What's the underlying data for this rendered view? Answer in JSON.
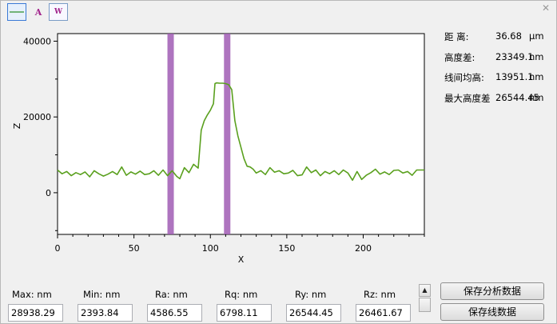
{
  "toolbar": {
    "line_icon": "line-icon",
    "a_label": "A",
    "w_label": "W"
  },
  "stats": [
    {
      "label": "距 离:",
      "value": "36.68",
      "unit": "μm"
    },
    {
      "label": "高度差:",
      "value": "23349.1",
      "unit": "nm"
    },
    {
      "label": "线间均高:",
      "value": "13951.1",
      "unit": "nm"
    },
    {
      "label": "最大高度差",
      "value": "26544.45",
      "unit": "nm"
    }
  ],
  "measurements": [
    {
      "label": "Max:   nm",
      "value": "28938.29"
    },
    {
      "label": "Min:   nm",
      "value": "2393.84"
    },
    {
      "label": "Ra:    nm",
      "value": "4586.55"
    },
    {
      "label": "Rq:    nm",
      "value": "6798.11"
    },
    {
      "label": "Ry:    nm",
      "value": "26544.45"
    },
    {
      "label": "Rz:    nm",
      "value": "26461.67"
    }
  ],
  "buttons": {
    "save_analysis": "保存分析数据",
    "save_line": "保存线数据"
  },
  "colors": {
    "profile_line": "#5aa01e",
    "marker": "#a05cb4"
  },
  "chart_data": {
    "type": "line",
    "xlabel": "X",
    "ylabel": "Z",
    "xlim": [
      0,
      240
    ],
    "ylim": [
      -11000,
      42000
    ],
    "xticks": [
      0,
      50,
      100,
      150,
      200
    ],
    "yticks": [
      0,
      20000,
      40000
    ],
    "x_tick_labels": [
      "0",
      "50",
      "100",
      "150",
      "200"
    ],
    "y_tick_labels": [
      "0",
      "20000",
      "40000"
    ],
    "markers": [
      74,
      111
    ],
    "series": [
      {
        "x": [
          0,
          3,
          6,
          9,
          12,
          15,
          18,
          21,
          24,
          27,
          30,
          33,
          36,
          39,
          42,
          45,
          48,
          51,
          54,
          57,
          60,
          63,
          66,
          69,
          72,
          75,
          78,
          80,
          83,
          86,
          89,
          92,
          94,
          96,
          98,
          100,
          102,
          103,
          104,
          106,
          108,
          110,
          112,
          114,
          116,
          118,
          120,
          122,
          124,
          126,
          128,
          130,
          133,
          136,
          139,
          142,
          145,
          148,
          151,
          154,
          157,
          160,
          163,
          166,
          169,
          172,
          175,
          178,
          181,
          184,
          187,
          190,
          193,
          196,
          199,
          202,
          205,
          208,
          211,
          214,
          217,
          220,
          223,
          226,
          229,
          232,
          235,
          240
        ],
        "y": [
          6000,
          5000,
          5600,
          4500,
          5300,
          4800,
          5500,
          4200,
          5800,
          5000,
          4400,
          4900,
          5600,
          4800,
          6800,
          4600,
          5500,
          4900,
          5700,
          4800,
          5000,
          5800,
          4600,
          6000,
          4500,
          5800,
          4300,
          3700,
          6600,
          5300,
          7500,
          6500,
          16500,
          19000,
          20500,
          21800,
          23500,
          28800,
          29000,
          28900,
          28900,
          28800,
          28500,
          27200,
          19000,
          15000,
          12000,
          9000,
          7000,
          6800,
          6200,
          5200,
          5800,
          4800,
          6600,
          5400,
          5800,
          5000,
          5200,
          5900,
          4500,
          4700,
          6800,
          5300,
          6000,
          4500,
          5600,
          5000,
          5800,
          4800,
          6000,
          5200,
          3300,
          5600,
          3500,
          4600,
          5300,
          6200,
          4900,
          5500,
          4800,
          5900,
          6000,
          5200,
          5600,
          4600,
          6000,
          6000
        ]
      }
    ]
  }
}
